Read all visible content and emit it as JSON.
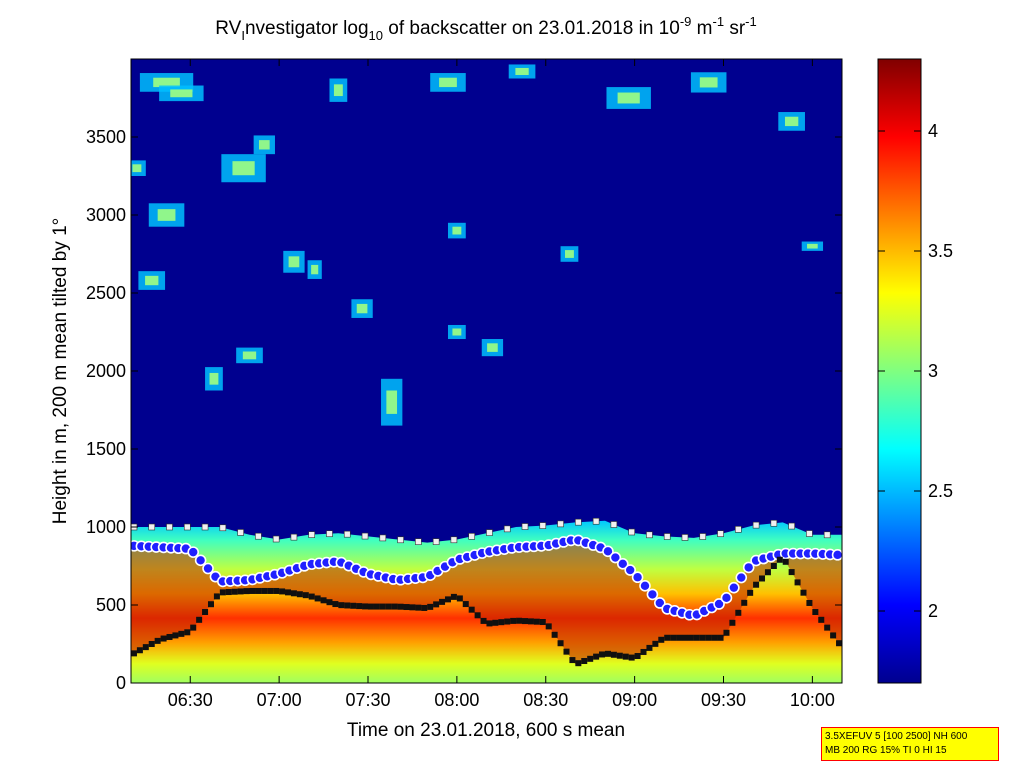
{
  "chart_data": {
    "type": "heatmap",
    "title_parts": {
      "a": "RV",
      "a_sub": "I",
      "b": "nvestigator log",
      "b_sub": "10",
      "c": " of backscatter on 23.01.2018 in 10",
      "c_sup": "-9",
      "d": " m",
      "d_sup": "-1",
      "e": " sr",
      "e_sup": "-1"
    },
    "xlabel": "Time on 23.01.2018, 600 s mean",
    "ylabel": "Height in m, 200 m mean tilted by 1°",
    "xlim": [
      "06:10",
      "10:10"
    ],
    "ylim": [
      0,
      4000
    ],
    "x_ticks": [
      "06:30",
      "07:00",
      "07:30",
      "08:00",
      "08:30",
      "09:00",
      "09:30",
      "10:00"
    ],
    "y_ticks": [
      0,
      500,
      1000,
      1500,
      2000,
      2500,
      3000,
      3500
    ],
    "colorbar": {
      "colormap": "jet",
      "range": [
        1.7,
        4.3
      ],
      "ticks": [
        2,
        2.5,
        3,
        3.5,
        4
      ],
      "tick_labels": [
        "2",
        "2.5",
        "3",
        "3.5",
        "4"
      ]
    },
    "boundary_layer_top_m": [
      [
        "06:10",
        1000
      ],
      [
        "06:30",
        1000
      ],
      [
        "06:40",
        1000
      ],
      [
        "06:50",
        950
      ],
      [
        "07:00",
        920
      ],
      [
        "07:10",
        950
      ],
      [
        "07:20",
        960
      ],
      [
        "07:30",
        940
      ],
      [
        "07:40",
        920
      ],
      [
        "07:50",
        900
      ],
      [
        "08:00",
        920
      ],
      [
        "08:10",
        960
      ],
      [
        "08:20",
        1000
      ],
      [
        "08:30",
        1010
      ],
      [
        "08:40",
        1030
      ],
      [
        "08:50",
        1040
      ],
      [
        "09:00",
        960
      ],
      [
        "09:10",
        940
      ],
      [
        "09:20",
        930
      ],
      [
        "09:30",
        960
      ],
      [
        "09:40",
        1010
      ],
      [
        "09:50",
        1030
      ],
      [
        "10:00",
        950
      ],
      [
        "10:10",
        950
      ]
    ],
    "aerosol_layer_top_m": [
      [
        "06:10",
        880
      ],
      [
        "06:20",
        870
      ],
      [
        "06:30",
        860
      ],
      [
        "06:40",
        650
      ],
      [
        "06:50",
        660
      ],
      [
        "07:00",
        700
      ],
      [
        "07:10",
        760
      ],
      [
        "07:20",
        780
      ],
      [
        "07:30",
        700
      ],
      [
        "07:40",
        660
      ],
      [
        "07:50",
        680
      ],
      [
        "08:00",
        790
      ],
      [
        "08:10",
        840
      ],
      [
        "08:20",
        870
      ],
      [
        "08:30",
        880
      ],
      [
        "08:40",
        920
      ],
      [
        "08:50",
        860
      ],
      [
        "09:00",
        700
      ],
      [
        "09:10",
        480
      ],
      [
        "09:20",
        430
      ],
      [
        "09:30",
        520
      ],
      [
        "09:40",
        780
      ],
      [
        "09:50",
        830
      ],
      [
        "10:00",
        830
      ],
      [
        "10:10",
        820
      ]
    ],
    "low_layer_m": [
      [
        "06:10",
        180
      ],
      [
        "06:20",
        280
      ],
      [
        "06:30",
        330
      ],
      [
        "06:40",
        580
      ],
      [
        "06:50",
        590
      ],
      [
        "07:00",
        590
      ],
      [
        "07:10",
        560
      ],
      [
        "07:20",
        500
      ],
      [
        "07:30",
        490
      ],
      [
        "07:40",
        490
      ],
      [
        "07:50",
        480
      ],
      [
        "08:00",
        560
      ],
      [
        "08:10",
        380
      ],
      [
        "08:20",
        400
      ],
      [
        "08:30",
        390
      ],
      [
        "08:40",
        120
      ],
      [
        "08:50",
        190
      ],
      [
        "09:00",
        160
      ],
      [
        "09:10",
        290
      ],
      [
        "09:20",
        290
      ],
      [
        "09:30",
        290
      ],
      [
        "09:40",
        610
      ],
      [
        "09:50",
        810
      ],
      [
        "10:00",
        480
      ],
      [
        "10:10",
        230
      ]
    ],
    "clouds": [
      {
        "t": "06:22",
        "h": 3850,
        "dt": 0.3,
        "dh": 120
      },
      {
        "t": "06:27",
        "h": 3780,
        "dt": 0.25,
        "dh": 100
      },
      {
        "t": "06:17",
        "h": 2580,
        "dt": 0.15,
        "dh": 120
      },
      {
        "t": "06:22",
        "h": 3000,
        "dt": 0.2,
        "dh": 150
      },
      {
        "t": "06:48",
        "h": 3300,
        "dt": 0.25,
        "dh": 180
      },
      {
        "t": "06:55",
        "h": 3450,
        "dt": 0.12,
        "dh": 120
      },
      {
        "t": "06:50",
        "h": 2100,
        "dt": 0.15,
        "dh": 100
      },
      {
        "t": "07:05",
        "h": 2700,
        "dt": 0.12,
        "dh": 140
      },
      {
        "t": "07:12",
        "h": 2650,
        "dt": 0.08,
        "dh": 120
      },
      {
        "t": "07:20",
        "h": 3800,
        "dt": 0.1,
        "dh": 150
      },
      {
        "t": "07:28",
        "h": 2400,
        "dt": 0.12,
        "dh": 120
      },
      {
        "t": "07:38",
        "h": 1800,
        "dt": 0.12,
        "dh": 300
      },
      {
        "t": "07:57",
        "h": 3850,
        "dt": 0.2,
        "dh": 120
      },
      {
        "t": "08:00",
        "h": 2250,
        "dt": 0.1,
        "dh": 90
      },
      {
        "t": "08:00",
        "h": 2900,
        "dt": 0.1,
        "dh": 100
      },
      {
        "t": "08:22",
        "h": 3920,
        "dt": 0.15,
        "dh": 90
      },
      {
        "t": "08:58",
        "h": 3750,
        "dt": 0.25,
        "dh": 140
      },
      {
        "t": "09:25",
        "h": 3850,
        "dt": 0.2,
        "dh": 130
      },
      {
        "t": "09:53",
        "h": 3600,
        "dt": 0.15,
        "dh": 120
      },
      {
        "t": "10:00",
        "h": 2800,
        "dt": 0.12,
        "dh": 60
      },
      {
        "t": "06:38",
        "h": 1950,
        "dt": 0.1,
        "dh": 150
      },
      {
        "t": "08:12",
        "h": 2150,
        "dt": 0.12,
        "dh": 110
      },
      {
        "t": "08:38",
        "h": 2750,
        "dt": 0.1,
        "dh": 100
      },
      {
        "t": "06:12",
        "h": 3300,
        "dt": 0.1,
        "dh": 100
      }
    ],
    "info_box": [
      "3.5XEFUV 5 [100 2500] NH 600",
      "MB 200 RG 15% TI 0 HI 15"
    ]
  }
}
